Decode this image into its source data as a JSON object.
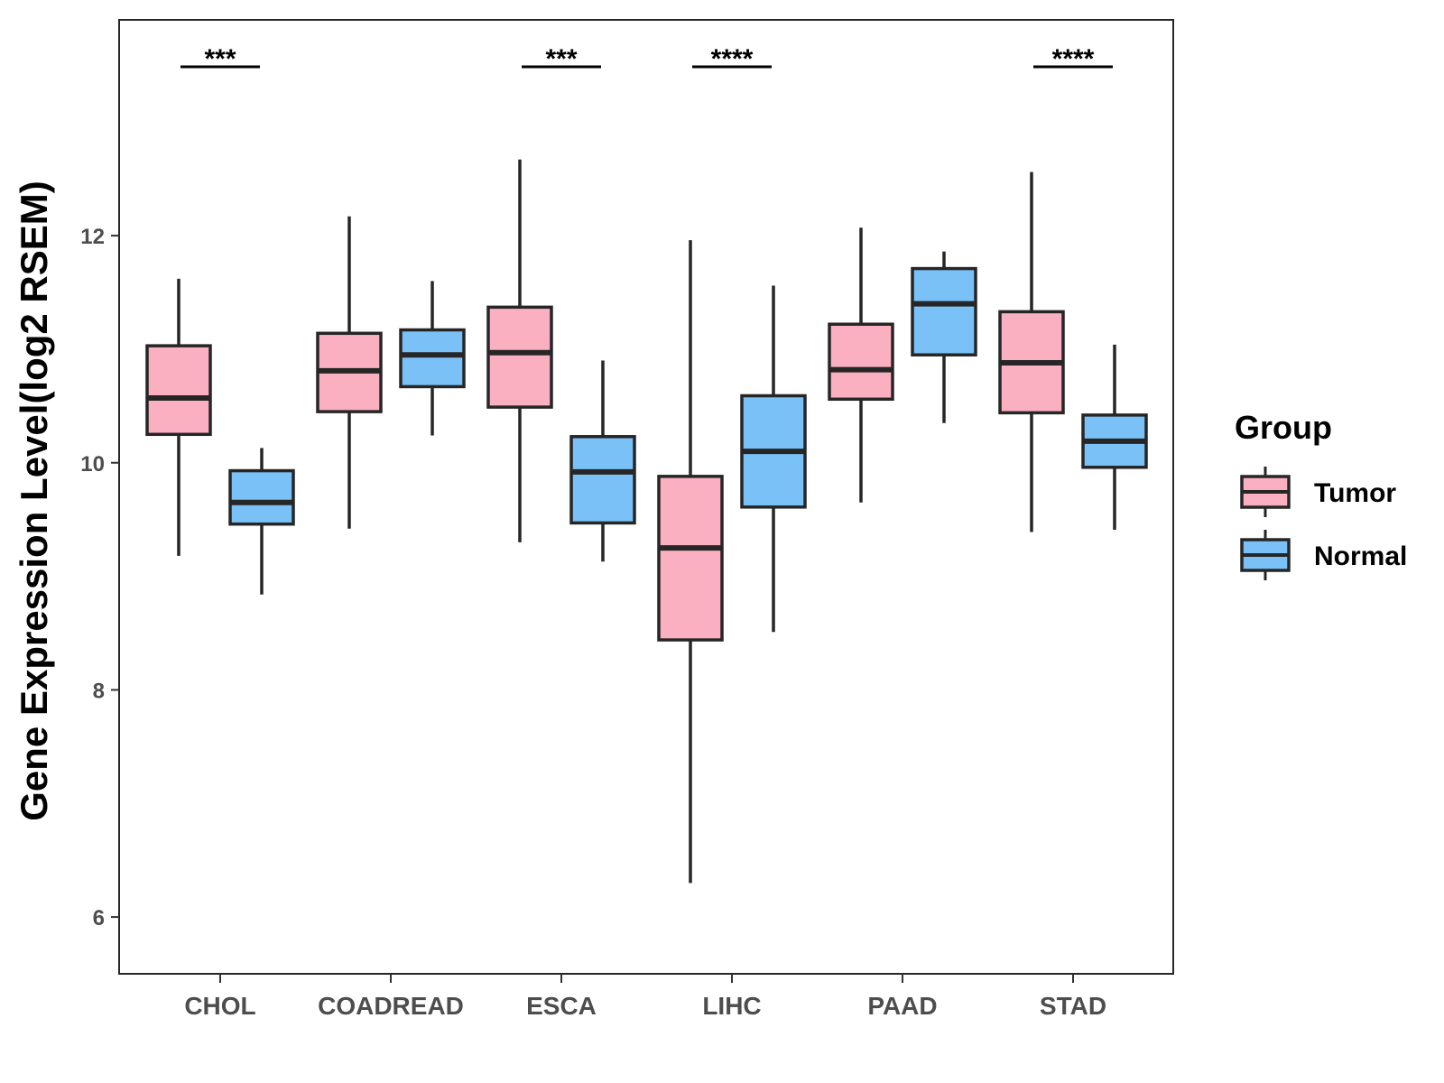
{
  "chart_data": {
    "type": "boxplot",
    "title": "",
    "xlabel": "",
    "ylabel": "Gene Expression Level(log2 RSEM)",
    "ylim": [
      5.5,
      13.9
    ],
    "yticks": [
      6,
      8,
      10,
      12
    ],
    "grid": false,
    "categories": [
      "CHOL",
      "COADREAD",
      "ESCA",
      "LIHC",
      "PAAD",
      "STAD"
    ],
    "legend": {
      "title": "Group",
      "position": "right",
      "entries": [
        "Tumor",
        "Normal"
      ]
    },
    "colors": {
      "Tumor": "#FBB0C1",
      "Normal": "#7AC1F7",
      "stroke": "#262626"
    },
    "series": [
      {
        "name": "Tumor",
        "boxes": [
          {
            "min": 9.18,
            "q1": 10.25,
            "median": 10.57,
            "q3": 11.03,
            "max": 11.62
          },
          {
            "min": 9.42,
            "q1": 10.45,
            "median": 10.81,
            "q3": 11.14,
            "max": 12.17
          },
          {
            "min": 9.3,
            "q1": 10.49,
            "median": 10.97,
            "q3": 11.37,
            "max": 12.67
          },
          {
            "min": 6.3,
            "q1": 8.44,
            "median": 9.25,
            "q3": 9.88,
            "max": 11.96
          },
          {
            "min": 9.65,
            "q1": 10.56,
            "median": 10.82,
            "q3": 11.22,
            "max": 12.07
          },
          {
            "min": 9.39,
            "q1": 10.44,
            "median": 10.88,
            "q3": 11.33,
            "max": 12.56
          }
        ]
      },
      {
        "name": "Normal",
        "boxes": [
          {
            "min": 8.84,
            "q1": 9.46,
            "median": 9.65,
            "q3": 9.93,
            "max": 10.13
          },
          {
            "min": 10.24,
            "q1": 10.67,
            "median": 10.95,
            "q3": 11.17,
            "max": 11.6
          },
          {
            "min": 9.13,
            "q1": 9.47,
            "median": 9.92,
            "q3": 10.23,
            "max": 10.9
          },
          {
            "min": 8.51,
            "q1": 9.61,
            "median": 10.1,
            "q3": 10.59,
            "max": 11.56
          },
          {
            "min": 10.35,
            "q1": 10.95,
            "median": 11.4,
            "q3": 11.71,
            "max": 11.86
          },
          {
            "min": 9.41,
            "q1": 9.96,
            "median": 10.19,
            "q3": 10.42,
            "max": 11.04
          }
        ]
      }
    ],
    "significance": [
      {
        "category": "CHOL",
        "label": "***"
      },
      {
        "category": "ESCA",
        "label": "***"
      },
      {
        "category": "LIHC",
        "label": "****"
      },
      {
        "category": "STAD",
        "label": "****"
      }
    ]
  }
}
